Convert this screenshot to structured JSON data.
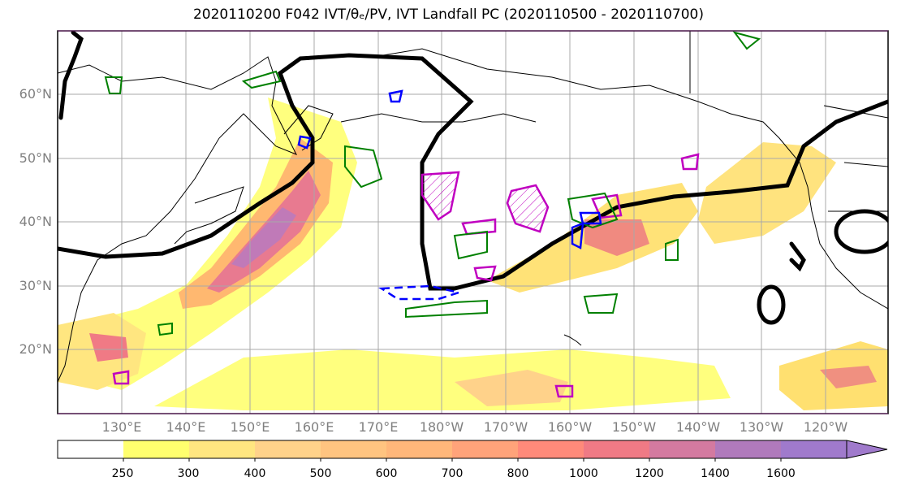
{
  "title": "2020110200 F042 IVT/θₑ/PV, IVT Landfall PC (2020110500 - 2020110700)",
  "map": {
    "lat_labels": [
      "60°N",
      "50°N",
      "40°N",
      "30°N",
      "20°N"
    ],
    "lat_values": [
      60,
      50,
      40,
      30,
      20
    ],
    "lon_labels": [
      "130°E",
      "140°E",
      "150°E",
      "160°E",
      "170°E",
      "180°W",
      "170°W",
      "160°W",
      "150°W",
      "140°W",
      "130°W",
      "120°W"
    ],
    "lat_range": [
      10,
      70
    ],
    "lon_range": [
      120,
      250
    ],
    "grid": true,
    "colors": {
      "ivt_fill": "#ffe866",
      "theta_contour": "#008000",
      "pv_contour": "#0000ff",
      "pc_contour": "#000000",
      "magenta_contour": "#c000c0"
    }
  },
  "colorbar": {
    "levels": [
      "250",
      "300",
      "400",
      "500",
      "600",
      "700",
      "800",
      "1000",
      "1200",
      "1400",
      "1600"
    ],
    "colors": [
      "#ffffff",
      "#ffff6e",
      "#ffe680",
      "#ffd28a",
      "#ffc480",
      "#ffb77a",
      "#ffa37a",
      "#ff8a7a",
      "#f07a85",
      "#d47aa0",
      "#b07abc",
      "#a07acc"
    ]
  }
}
